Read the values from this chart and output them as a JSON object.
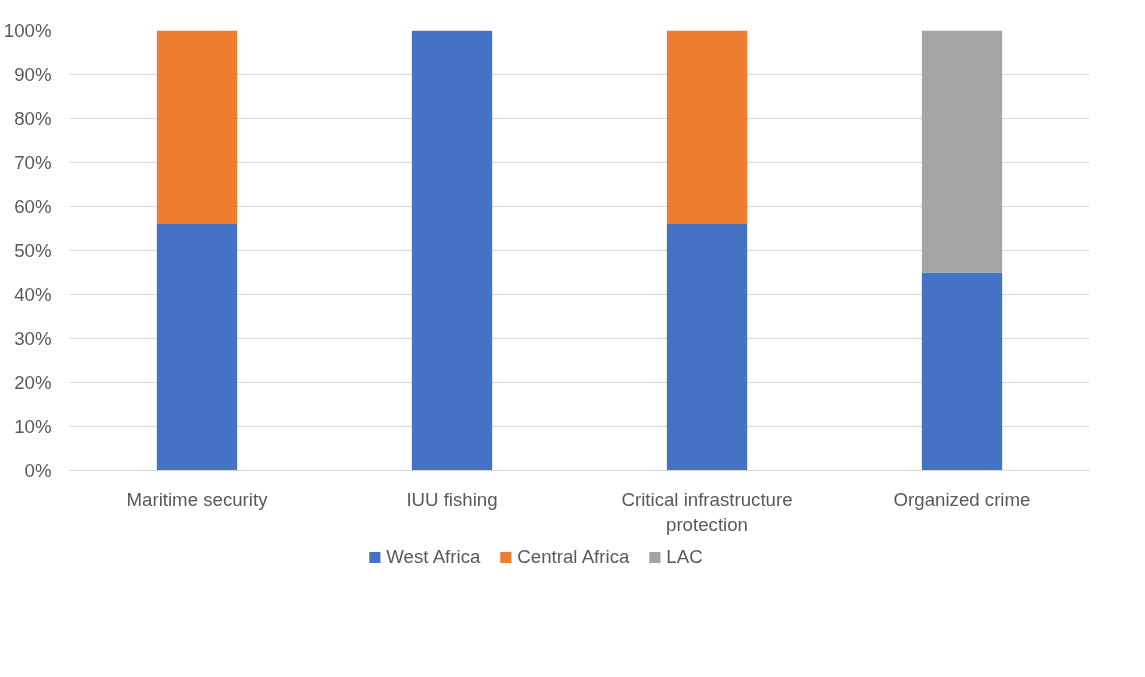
{
  "chart_data": {
    "type": "bar",
    "stacked": true,
    "categories": [
      "Maritime security",
      "IUU fishing",
      "Critical infrastructure protection",
      "Organized crime"
    ],
    "series": [
      {
        "name": "West Africa",
        "color": "#4472c4",
        "values": [
          56,
          100,
          56,
          45
        ]
      },
      {
        "name": "Central Africa",
        "color": "#ed7d31",
        "values": [
          44,
          null,
          44,
          null
        ]
      },
      {
        "name": "LAC",
        "color": "#a5a5a5",
        "values": [
          null,
          null,
          null,
          55
        ]
      }
    ],
    "ylim": [
      0,
      100
    ],
    "yticks": [
      {
        "value": 0,
        "label": "0%"
      },
      {
        "value": 10,
        "label": "10%"
      },
      {
        "value": 20,
        "label": "20%"
      },
      {
        "value": 30,
        "label": "30%"
      },
      {
        "value": 40,
        "label": "40%"
      },
      {
        "value": 50,
        "label": "50%"
      },
      {
        "value": 60,
        "label": "60%"
      },
      {
        "value": 70,
        "label": "70%"
      },
      {
        "value": 80,
        "label": "80%"
      },
      {
        "value": 90,
        "label": "90%"
      },
      {
        "value": 100,
        "label": "100%"
      }
    ],
    "grid": "y",
    "legend": "bottom"
  }
}
